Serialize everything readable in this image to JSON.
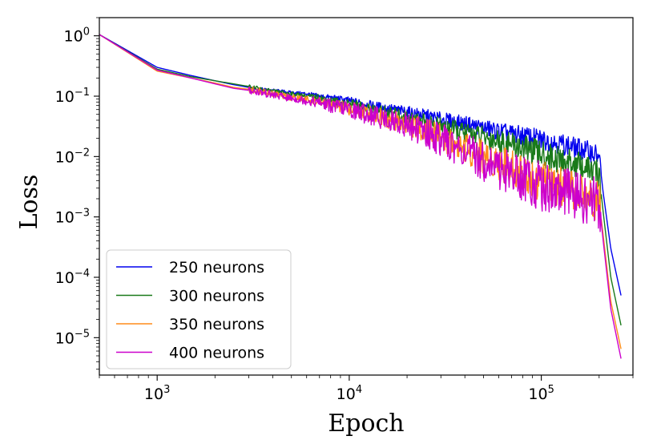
{
  "chart_data": {
    "type": "line",
    "xscale": "log",
    "yscale": "log",
    "xlabel": "Epoch",
    "ylabel": "Loss",
    "xlim": [
      500,
      300000
    ],
    "ylim": [
      2.4e-06,
      2.0
    ],
    "x_ticks": [
      {
        "value": 1000,
        "base": "10",
        "exp": "3"
      },
      {
        "value": 10000,
        "base": "10",
        "exp": "4"
      },
      {
        "value": 100000,
        "base": "10",
        "exp": "5"
      }
    ],
    "y_ticks": [
      {
        "value": 1,
        "base": "10",
        "exp": "0"
      },
      {
        "value": 0.1,
        "base": "10",
        "exp": "−1"
      },
      {
        "value": 0.01,
        "base": "10",
        "exp": "−2"
      },
      {
        "value": 0.001,
        "base": "10",
        "exp": "−3"
      },
      {
        "value": 0.0001,
        "base": "10",
        "exp": "−4"
      },
      {
        "value": 1e-05,
        "base": "10",
        "exp": "−5"
      }
    ],
    "legend_position": "lower-left",
    "series": [
      {
        "name": "250 neurons",
        "color": "#0000ee",
        "x": [
          500,
          1000,
          1500,
          2000,
          2500,
          3000,
          3500,
          4000,
          4500,
          5000,
          6000,
          7000,
          8000,
          10000,
          12000,
          15000,
          20000,
          25000,
          30000,
          40000,
          50000,
          60000,
          80000,
          100000,
          120000,
          150000,
          180000,
          200000,
          210000,
          230000,
          260000
        ],
        "y": [
          1.05,
          0.3,
          0.22,
          0.18,
          0.155,
          0.14,
          0.13,
          0.125,
          0.12,
          0.115,
          0.11,
          0.1,
          0.095,
          0.085,
          0.075,
          0.065,
          0.055,
          0.048,
          0.042,
          0.035,
          0.03,
          0.026,
          0.022,
          0.019,
          0.017,
          0.014,
          0.012,
          0.01,
          0.0025,
          0.0003,
          5e-05
        ]
      },
      {
        "name": "300 neurons",
        "color": "#1a7a1a",
        "x": [
          500,
          1000,
          1500,
          2000,
          2500,
          3000,
          3500,
          4000,
          4500,
          5000,
          6000,
          7000,
          8000,
          10000,
          12000,
          15000,
          20000,
          25000,
          30000,
          40000,
          50000,
          60000,
          80000,
          100000,
          120000,
          150000,
          180000,
          200000,
          210000,
          230000,
          260000
        ],
        "y": [
          1.05,
          0.28,
          0.21,
          0.18,
          0.16,
          0.145,
          0.13,
          0.12,
          0.115,
          0.11,
          0.1,
          0.095,
          0.085,
          0.075,
          0.066,
          0.056,
          0.045,
          0.038,
          0.032,
          0.025,
          0.021,
          0.018,
          0.014,
          0.011,
          0.009,
          0.0075,
          0.006,
          0.005,
          0.0012,
          0.0001,
          1.6e-05
        ]
      },
      {
        "name": "350 neurons",
        "color": "#ff8c1a",
        "x": [
          500,
          1000,
          1500,
          2000,
          2500,
          3000,
          3500,
          4000,
          4500,
          5000,
          6000,
          7000,
          8000,
          10000,
          12000,
          15000,
          20000,
          25000,
          30000,
          40000,
          50000,
          60000,
          80000,
          100000,
          120000,
          150000,
          180000,
          200000,
          210000,
          230000,
          260000
        ],
        "y": [
          1.05,
          0.26,
          0.2,
          0.165,
          0.14,
          0.13,
          0.12,
          0.11,
          0.1,
          0.095,
          0.088,
          0.08,
          0.072,
          0.062,
          0.054,
          0.045,
          0.034,
          0.027,
          0.021,
          0.014,
          0.01,
          0.008,
          0.0055,
          0.004,
          0.0032,
          0.0025,
          0.002,
          0.0018,
          0.0005,
          4e-05,
          6.5e-06
        ]
      },
      {
        "name": "400 neurons",
        "color": "#cc00cc",
        "x": [
          500,
          1000,
          1500,
          2000,
          2500,
          3000,
          3500,
          4000,
          4500,
          5000,
          6000,
          7000,
          8000,
          10000,
          12000,
          15000,
          20000,
          25000,
          30000,
          40000,
          50000,
          60000,
          80000,
          100000,
          120000,
          150000,
          180000,
          200000,
          210000,
          230000,
          260000
        ],
        "y": [
          1.05,
          0.27,
          0.2,
          0.16,
          0.135,
          0.125,
          0.115,
          0.105,
          0.098,
          0.092,
          0.085,
          0.078,
          0.07,
          0.06,
          0.052,
          0.043,
          0.033,
          0.025,
          0.019,
          0.012,
          0.0085,
          0.0065,
          0.0045,
          0.0033,
          0.0027,
          0.0022,
          0.0019,
          0.0017,
          0.0004,
          3e-05,
          4.5e-06
        ]
      }
    ]
  }
}
